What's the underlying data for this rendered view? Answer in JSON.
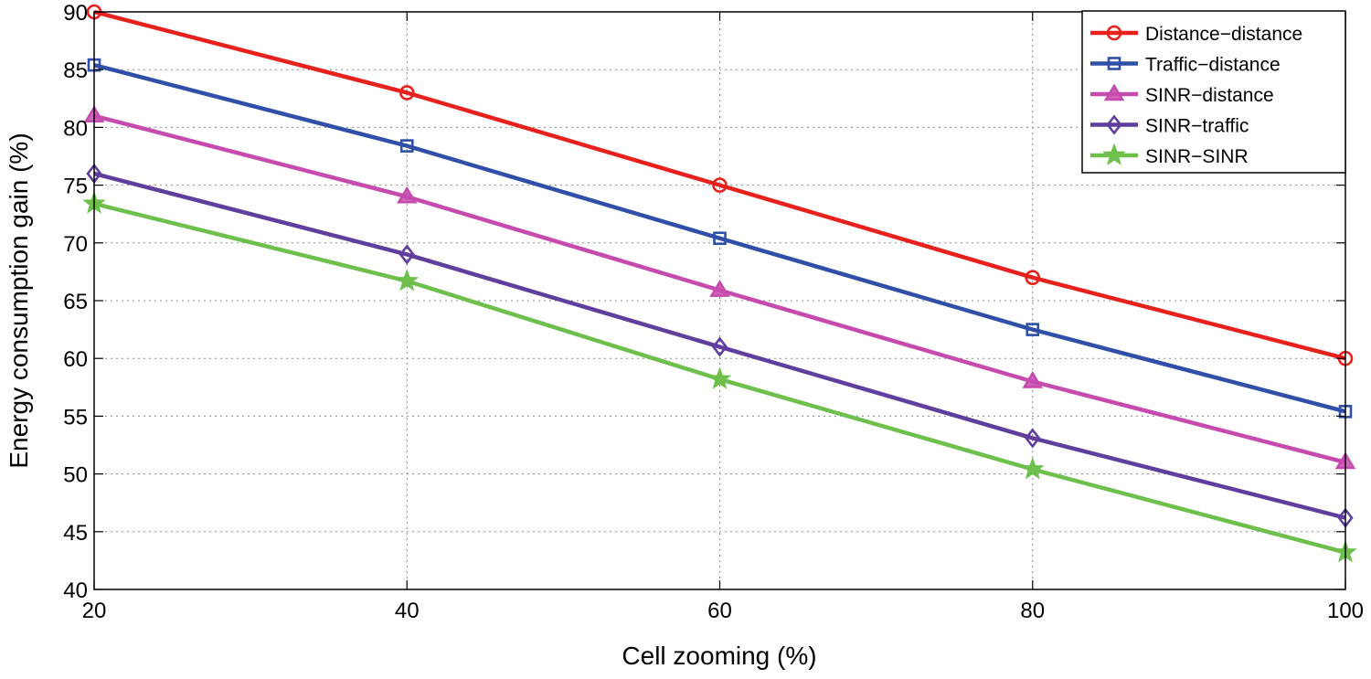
{
  "chart_data": {
    "type": "line",
    "title": "",
    "xlabel": "Cell zooming (%)",
    "ylabel": "Energy consumption gain (%)",
    "x": [
      20,
      40,
      60,
      80,
      100
    ],
    "xlim": [
      20,
      100
    ],
    "ylim": [
      40,
      90
    ],
    "xticks": [
      "20",
      "40",
      "60",
      "80",
      "100"
    ],
    "yticks": [
      "40",
      "45",
      "50",
      "55",
      "60",
      "65",
      "70",
      "75",
      "80",
      "85",
      "90"
    ],
    "grid": true,
    "legend_position": "top-right",
    "series": [
      {
        "name": "Distance−distance",
        "color": "#e8211d",
        "marker": "circle",
        "values": [
          90,
          83,
          75,
          67,
          60
        ]
      },
      {
        "name": "Traffic−distance",
        "color": "#2f4fa8",
        "marker": "square",
        "values": [
          85.4,
          78.4,
          70.4,
          62.5,
          55.4
        ]
      },
      {
        "name": "SINR−distance",
        "color": "#c74aae",
        "marker": "triangle",
        "values": [
          81,
          74,
          65.9,
          58,
          51
        ]
      },
      {
        "name": "SINR−traffic",
        "color": "#5f3e9e",
        "marker": "diamond",
        "values": [
          76,
          69,
          61,
          53.1,
          46.2
        ]
      },
      {
        "name": "SINR−SINR",
        "color": "#6dc04b",
        "marker": "star",
        "values": [
          73.4,
          66.7,
          58.2,
          50.4,
          43.2
        ]
      }
    ]
  }
}
